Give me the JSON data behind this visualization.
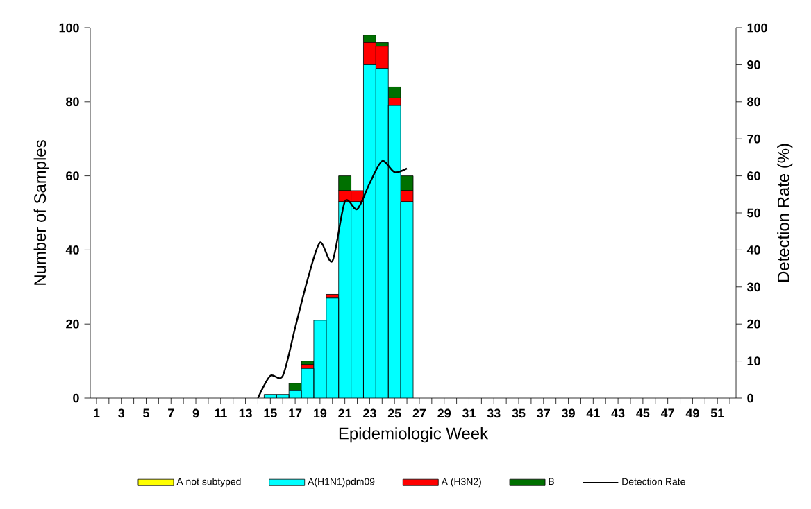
{
  "chart_data": {
    "type": "bar",
    "stacked": true,
    "xlabel": "Epidemiologic Week",
    "ylabel": "Number of Samples",
    "y2label": "Detection Rate (%)",
    "categories": [
      "1",
      null,
      "3",
      null,
      "5",
      null,
      "7",
      null,
      "9",
      null,
      "11",
      null,
      "13",
      null,
      "15",
      null,
      "17",
      null,
      "19",
      null,
      "21",
      null,
      "23",
      null,
      "25",
      null,
      "27",
      null,
      "29",
      null,
      "31",
      null,
      "33",
      null,
      "35",
      null,
      "37",
      null,
      "39",
      null,
      "41",
      null,
      "43",
      null,
      "45",
      null,
      "47",
      null,
      "49",
      null,
      "51",
      null
    ],
    "series": [
      {
        "name": "A not subtyped",
        "color": "#ffff00",
        "values": [
          null,
          null,
          null,
          null,
          null,
          null,
          null,
          null,
          null,
          null,
          null,
          null,
          null,
          null,
          0,
          0,
          0,
          0,
          0,
          0,
          0,
          0,
          0,
          0,
          0,
          0,
          null,
          null,
          null,
          null,
          null,
          null,
          null,
          null,
          null,
          null,
          null,
          null,
          null,
          null,
          null,
          null,
          null,
          null,
          null,
          null,
          null,
          null,
          null,
          null,
          null,
          null
        ]
      },
      {
        "name": "A(H1N1)pdm09",
        "color": "#00ffff",
        "values": [
          null,
          null,
          null,
          null,
          null,
          null,
          null,
          null,
          null,
          null,
          null,
          null,
          null,
          null,
          1,
          1,
          2,
          8,
          21,
          27,
          53,
          53,
          90,
          89,
          79,
          53,
          null,
          null,
          null,
          null,
          null,
          null,
          null,
          null,
          null,
          null,
          null,
          null,
          null,
          null,
          null,
          null,
          null,
          null,
          null,
          null,
          null,
          null,
          null,
          null,
          null,
          null
        ]
      },
      {
        "name": "A (H3N2)",
        "color": "#ff0000",
        "values": [
          null,
          null,
          null,
          null,
          null,
          null,
          null,
          null,
          null,
          null,
          null,
          null,
          null,
          null,
          0,
          0,
          0,
          1,
          0,
          1,
          3,
          3,
          6,
          6,
          2,
          3,
          null,
          null,
          null,
          null,
          null,
          null,
          null,
          null,
          null,
          null,
          null,
          null,
          null,
          null,
          null,
          null,
          null,
          null,
          null,
          null,
          null,
          null,
          null,
          null,
          null,
          null
        ]
      },
      {
        "name": "B",
        "color": "#007000",
        "values": [
          null,
          null,
          null,
          null,
          null,
          null,
          null,
          null,
          null,
          null,
          null,
          null,
          null,
          null,
          0,
          0,
          2,
          1,
          0,
          0,
          4,
          0,
          2,
          1,
          3,
          4,
          null,
          null,
          null,
          null,
          null,
          null,
          null,
          null,
          null,
          null,
          null,
          null,
          null,
          null,
          null,
          null,
          null,
          null,
          null,
          null,
          null,
          null,
          null,
          null,
          null,
          null
        ]
      },
      {
        "name": "Detection Rate",
        "type": "line",
        "axis": "y2",
        "color": "#000000",
        "values": [
          null,
          null,
          null,
          null,
          null,
          null,
          null,
          null,
          null,
          null,
          null,
          null,
          null,
          0,
          6,
          6,
          19,
          32,
          42,
          37,
          53,
          51,
          58,
          64,
          61,
          62,
          null,
          null,
          null,
          null,
          null,
          null,
          null,
          null,
          null,
          null,
          null,
          null,
          null,
          null,
          null,
          null,
          null,
          null,
          null,
          null,
          null,
          null,
          null,
          null,
          null,
          null
        ]
      }
    ],
    "ylim": [
      0,
      100
    ],
    "yticks": [
      0,
      20,
      40,
      60,
      80,
      100
    ],
    "y2lim": [
      0,
      100
    ],
    "y2ticks": [
      0,
      10,
      20,
      30,
      40,
      50,
      60,
      70,
      80,
      90,
      100
    ],
    "legend": "bottom"
  }
}
